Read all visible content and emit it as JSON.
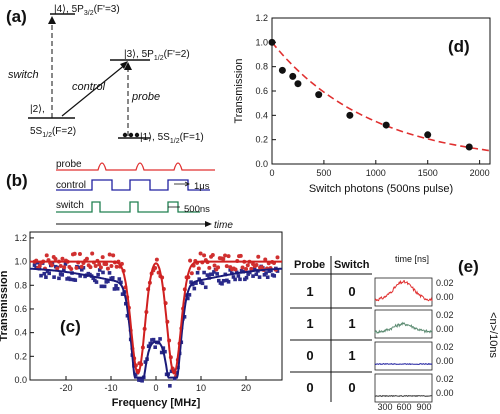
{
  "panels": {
    "a": {
      "letter": "(a)",
      "levels": {
        "l4": "|4⟩, 5P",
        "l4_sub": "3/2",
        "l4_tail": "(F'=3)",
        "l3": "|3⟩, 5P",
        "l3_sub": "1/2",
        "l3_tail": "(F'=2)",
        "l2": "|2⟩,",
        "l2b": "5S",
        "l2b_sub": "1/2",
        "l2b_tail": "(F=2)",
        "l1": "|1⟩, 5S",
        "l1_sub": "1/2",
        "l1_tail": "(F=1)"
      },
      "transitions": {
        "switch": "switch",
        "control": "control",
        "probe": "probe"
      }
    },
    "b": {
      "letter": "(b)",
      "rows": {
        "probe": "probe",
        "control": "control",
        "switch": "switch"
      },
      "labels": {
        "width1": "1μs",
        "width2": "500ns",
        "time": "time"
      },
      "colors": {
        "probe": "#e03030",
        "control": "#2020a0",
        "switch": "#208050"
      }
    },
    "c": {
      "letter": "(c)"
    },
    "d": {
      "letter": "(d)"
    },
    "e": {
      "letter": "(e)",
      "header_probe": "Probe",
      "header_switch": "Switch",
      "rows": [
        {
          "probe": "1",
          "switch": "0",
          "color": "#e03030"
        },
        {
          "probe": "1",
          "switch": "1",
          "color": "#5a8a70"
        },
        {
          "probe": "0",
          "switch": "1",
          "color": "#2020a0"
        },
        {
          "probe": "0",
          "switch": "0",
          "color": "#333333"
        }
      ],
      "time_label": "time [ns]",
      "x_ticks": [
        "300",
        "600",
        "900"
      ],
      "y_ticks": [
        "0.02",
        "0.00"
      ],
      "y_label": "<n>/10ns"
    }
  },
  "chart_data": [
    {
      "panel": "c",
      "type": "scatter",
      "xlabel": "Frequency [MHz]",
      "ylabel": "Transmission",
      "xlim": [
        -28,
        28
      ],
      "ylim": [
        0,
        1.25
      ],
      "x_ticks": [
        -20,
        -10,
        0,
        10,
        20
      ],
      "y_ticks": [
        0.0,
        0.2,
        0.4,
        0.6,
        0.8,
        1.0,
        1.2
      ],
      "series": [
        {
          "color": "#d03030",
          "marker": "circle",
          "fit": "red"
        },
        {
          "color": "#2a2a8a",
          "marker": "square",
          "fit": "blue"
        }
      ],
      "dips_at": [
        -4,
        4
      ]
    },
    {
      "panel": "d",
      "type": "scatter",
      "xlabel": "Switch photons (500ns pulse)",
      "ylabel": "Transmission",
      "xlim": [
        0,
        2100
      ],
      "ylim": [
        0,
        1.2
      ],
      "x_ticks": [
        0,
        500,
        1000,
        1500,
        2000
      ],
      "y_ticks": [
        0.0,
        0.2,
        0.4,
        0.6,
        0.8,
        1.0,
        1.2
      ],
      "points": [
        {
          "x": 0,
          "y": 1.0
        },
        {
          "x": 100,
          "y": 0.77
        },
        {
          "x": 200,
          "y": 0.72
        },
        {
          "x": 250,
          "y": 0.66
        },
        {
          "x": 450,
          "y": 0.57
        },
        {
          "x": 750,
          "y": 0.4
        },
        {
          "x": 1100,
          "y": 0.32
        },
        {
          "x": 1500,
          "y": 0.24
        },
        {
          "x": 1900,
          "y": 0.14
        }
      ],
      "fit": {
        "amplitude": 1.0,
        "decay": 950,
        "color": "#e03030",
        "style": "dashed"
      }
    }
  ]
}
